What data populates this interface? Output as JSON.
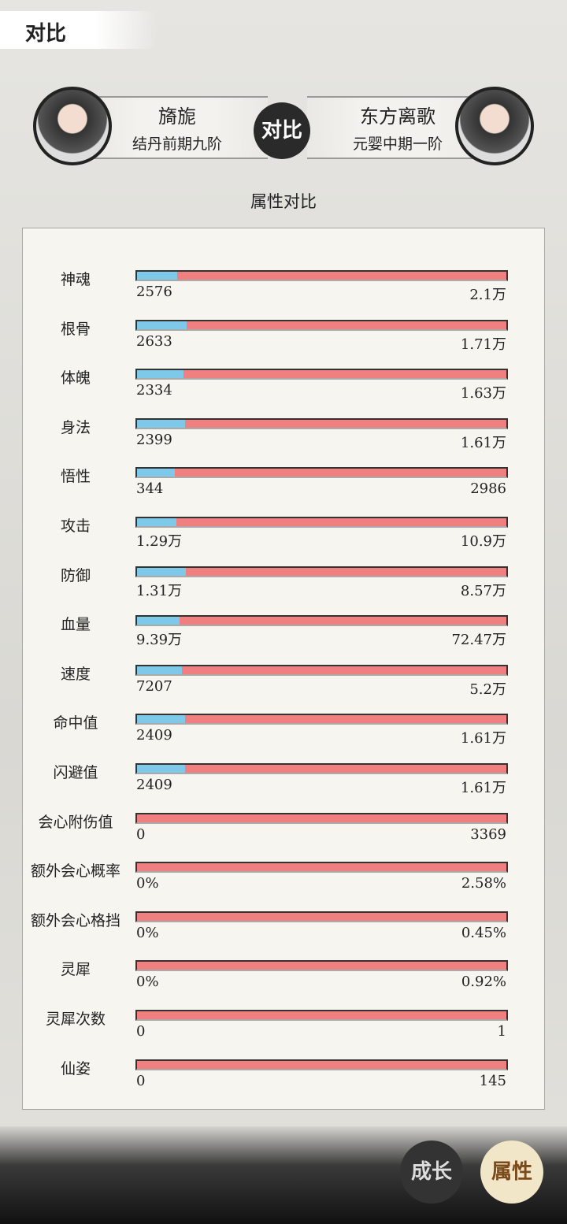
{
  "header": {
    "title": "对比"
  },
  "players": {
    "left": {
      "name": "旖旎",
      "realm": "结丹前期九阶"
    },
    "vs": "对比",
    "right": {
      "name": "东方离歌",
      "realm": "元婴中期一阶"
    }
  },
  "section_title": "属性对比",
  "rows": [
    {
      "name": "神魂",
      "left": 2576,
      "right": {
        "value": 21000,
        "label": "2.1万"
      }
    },
    {
      "name": "根骨",
      "left": 2633,
      "right": {
        "value": 17100,
        "label": "1.71万"
      }
    },
    {
      "name": "体魄",
      "left": 2334,
      "right": {
        "value": 16300,
        "label": "1.63万"
      }
    },
    {
      "name": "身法",
      "left": 2399,
      "right": {
        "value": 16100,
        "label": "1.61万"
      }
    },
    {
      "name": "悟性",
      "left": 344,
      "right": 2986
    },
    {
      "name": "攻击",
      "left": {
        "value": 12900,
        "label": "1.29万"
      },
      "right": {
        "value": 109000,
        "label": "10.9万"
      }
    },
    {
      "name": "防御",
      "left": {
        "value": 13100,
        "label": "1.31万"
      },
      "right": {
        "value": 85700,
        "label": "8.57万"
      }
    },
    {
      "name": "血量",
      "left": {
        "value": 93900,
        "label": "9.39万"
      },
      "right": {
        "value": 724700,
        "label": "72.47万"
      }
    },
    {
      "name": "速度",
      "left": 7207,
      "right": {
        "value": 52000,
        "label": "5.2万"
      }
    },
    {
      "name": "命中值",
      "left": 2409,
      "right": {
        "value": 16100,
        "label": "1.61万"
      }
    },
    {
      "name": "闪避值",
      "left": 2409,
      "right": {
        "value": 16100,
        "label": "1.61万"
      }
    },
    {
      "name": "会心附伤值",
      "left": 0,
      "right": 3369
    },
    {
      "name": "额外会心概率",
      "left": {
        "value": 0,
        "label": "0%"
      },
      "right": {
        "value": 2.58,
        "label": "2.58%"
      }
    },
    {
      "name": "额外会心格挡",
      "left": {
        "value": 0,
        "label": "0%"
      },
      "right": {
        "value": 0.45,
        "label": "0.45%"
      }
    },
    {
      "name": "灵犀",
      "left": {
        "value": 0,
        "label": "0%"
      },
      "right": {
        "value": 0.92,
        "label": "0.92%"
      }
    },
    {
      "name": "灵犀次数",
      "left": 0,
      "right": 1
    },
    {
      "name": "仙姿",
      "left": 0,
      "right": 145
    }
  ],
  "buttons": [
    "成长",
    "属性"
  ]
}
